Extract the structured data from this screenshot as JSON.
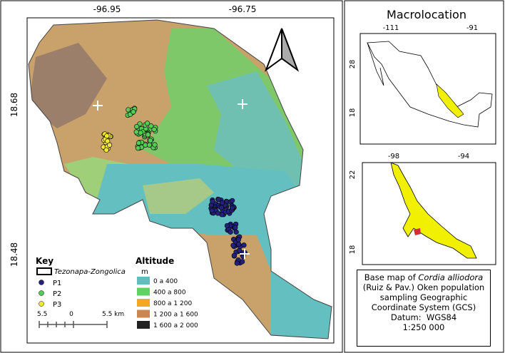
{
  "main_map": {
    "top_coordinates": [
      "-96.95",
      "-96.75"
    ],
    "left_coordinates": [
      "18.68",
      "18.48"
    ],
    "key": {
      "title": "Key",
      "items": [
        "Tezonapa-Zongolica",
        "P1",
        "P2",
        "P3"
      ]
    },
    "altitude": {
      "title": "Altitude",
      "unit": "m",
      "classes": [
        "0 a 400",
        "400 a 800",
        "800 a 1 200",
        "1 200 a 1 600",
        "1 600 a 2 000"
      ]
    },
    "scale_bar": [
      "5.5",
      "0",
      "5.5 km"
    ]
  },
  "macrolocation": {
    "title": "Macrolocation",
    "mexico_map": {
      "top_coordinates": [
        "-111",
        "-91"
      ],
      "left_coordinates": [
        "28",
        "18"
      ]
    },
    "state_map": {
      "top_coordinates": [
        "-98",
        "-94"
      ],
      "left_coordinates": [
        "22",
        "18"
      ]
    }
  },
  "info_box": {
    "parts": [
      "Base map of",
      "Cordia alliodora",
      "(Ruiz & Pav.) Oken population sampling Geographic Coordinate System (GCS)",
      "Datum:  WGS84",
      "1:250 000"
    ]
  }
}
